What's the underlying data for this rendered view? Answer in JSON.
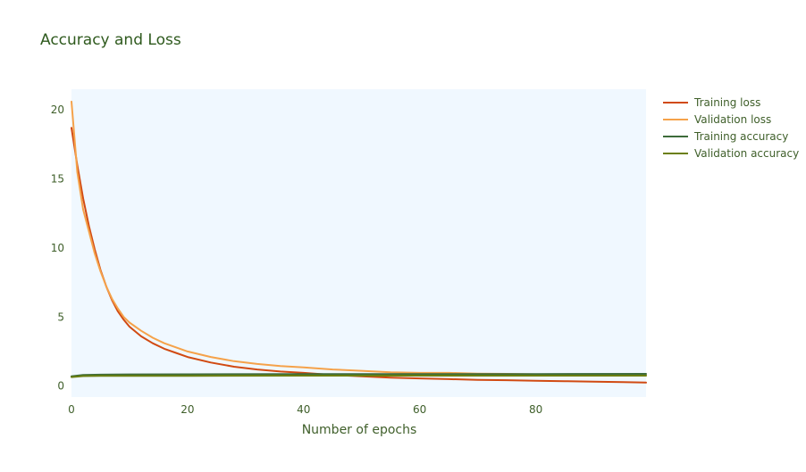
{
  "chart_data": {
    "type": "line",
    "title": "Accuracy and Loss",
    "xlabel": "Number of epochs",
    "ylabel": "",
    "xlim": [
      0,
      99
    ],
    "ylim": [
      -0.8,
      21.5
    ],
    "x_ticks": [
      "0",
      "20",
      "40",
      "60",
      "80"
    ],
    "y_ticks": [
      "0",
      "5",
      "10",
      "15",
      "20"
    ],
    "grid": false,
    "legend_position": "top-right",
    "series": [
      {
        "name": "Training loss",
        "color": "#d14a12",
        "x": [
          0,
          1,
          2,
          3,
          4,
          5,
          6,
          7,
          8,
          9,
          10,
          12,
          14,
          16,
          18,
          20,
          24,
          28,
          32,
          36,
          40,
          45,
          50,
          55,
          60,
          65,
          70,
          75,
          80,
          85,
          90,
          95,
          99
        ],
        "values": [
          18.7,
          16.0,
          13.6,
          11.6,
          9.9,
          8.4,
          7.2,
          6.2,
          5.4,
          4.8,
          4.3,
          3.6,
          3.1,
          2.7,
          2.4,
          2.1,
          1.7,
          1.4,
          1.2,
          1.05,
          0.95,
          0.8,
          0.7,
          0.6,
          0.55,
          0.5,
          0.45,
          0.42,
          0.38,
          0.35,
          0.32,
          0.28,
          0.25
        ]
      },
      {
        "name": "Validation loss",
        "color": "#f5a24a",
        "x": [
          0,
          1,
          2,
          3,
          4,
          5,
          6,
          7,
          8,
          9,
          10,
          12,
          14,
          16,
          18,
          20,
          24,
          28,
          32,
          36,
          40,
          45,
          50,
          55,
          60,
          65,
          70,
          75,
          80,
          85,
          90,
          95,
          99
        ],
        "values": [
          20.6,
          15.5,
          12.8,
          11.2,
          9.6,
          8.3,
          7.2,
          6.3,
          5.6,
          5.0,
          4.6,
          4.0,
          3.5,
          3.1,
          2.8,
          2.5,
          2.1,
          1.8,
          1.6,
          1.45,
          1.35,
          1.2,
          1.1,
          1.0,
          0.95,
          0.95,
          0.9,
          0.88,
          0.85,
          0.82,
          0.8,
          0.8,
          0.78
        ]
      },
      {
        "name": "Training accuracy",
        "color": "#3d6b3a",
        "x": [
          0,
          2,
          5,
          10,
          20,
          40,
          60,
          80,
          99
        ],
        "values": [
          0.7,
          0.8,
          0.82,
          0.84,
          0.85,
          0.86,
          0.87,
          0.87,
          0.88
        ]
      },
      {
        "name": "Validation accuracy",
        "color": "#6b7f0f",
        "x": [
          0,
          2,
          5,
          10,
          20,
          40,
          60,
          80,
          99
        ],
        "values": [
          0.65,
          0.72,
          0.73,
          0.74,
          0.74,
          0.75,
          0.75,
          0.75,
          0.75
        ]
      }
    ]
  }
}
